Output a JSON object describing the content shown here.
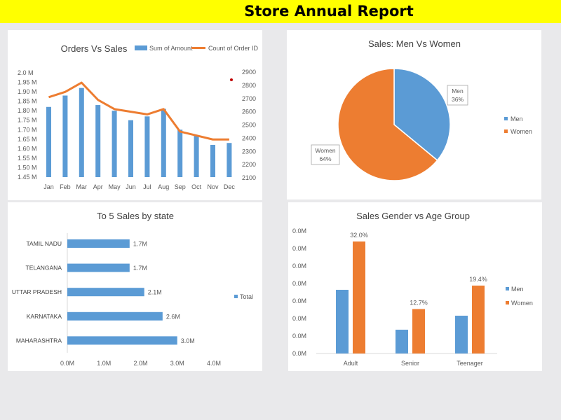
{
  "page": {
    "title": "Store Annual Report"
  },
  "colors": {
    "banner": "#ffff00",
    "blue": "#5b9bd5",
    "orange": "#ed7d31",
    "background": "#e9e9eb",
    "panel": "#ffffff"
  },
  "chart_data": [
    {
      "id": "orders-vs-sales",
      "type": "bar",
      "title": "Orders Vs Sales",
      "categories": [
        "Jan",
        "Feb",
        "Mar",
        "Apr",
        "May",
        "Jun",
        "Jul",
        "Aug",
        "Sep",
        "Oct",
        "Nov",
        "Dec"
      ],
      "series": [
        {
          "name": "Sum of Amount",
          "type": "bar",
          "axis": "left",
          "values": [
            1.82,
            1.88,
            1.92,
            1.83,
            1.8,
            1.75,
            1.77,
            1.81,
            1.7,
            1.67,
            1.62,
            1.63
          ]
        },
        {
          "name": "Count of Order ID",
          "type": "line",
          "axis": "right",
          "values": [
            2710,
            2750,
            2820,
            2690,
            2620,
            2600,
            2580,
            2620,
            2450,
            2420,
            2390,
            2390
          ]
        }
      ],
      "y_left": {
        "ticks": [
          "2.0 M",
          "1.95 M",
          "1.90 M",
          "1.85 M",
          "1.80 M",
          "1.75 M",
          "1.70 M",
          "1.65 M",
          "1.60 M",
          "1.55 M",
          "1.50 M",
          "1.45 M"
        ],
        "range": [
          1.45,
          2.0
        ],
        "unit": "M"
      },
      "y_right": {
        "ticks": [
          "2900",
          "2800",
          "2700",
          "2600",
          "2500",
          "2400",
          "2300",
          "2200",
          "2100"
        ],
        "range": [
          2100,
          2900
        ]
      },
      "legend": "top-right",
      "grid": false
    },
    {
      "id": "sales-men-vs-women",
      "type": "pie",
      "title": "Sales: Men Vs Women",
      "slices": [
        {
          "label": "Men",
          "value": 36,
          "pct_label": "36%"
        },
        {
          "label": "Women",
          "value": 64,
          "pct_label": "64%"
        }
      ],
      "legend": [
        "Men",
        "Women"
      ],
      "legend_position": "right"
    },
    {
      "id": "top-sales-by-state",
      "type": "bar",
      "orientation": "horizontal",
      "title": "To 5 Sales by state",
      "categories": [
        "TAMIL NADU",
        "TELANGANA",
        "UTTAR PRADESH",
        "KARNATAKA",
        "MAHARASHTRA"
      ],
      "values": [
        1.7,
        1.7,
        2.1,
        2.6,
        3.0
      ],
      "data_labels": [
        "1.7M",
        "1.7M",
        "2.1M",
        "2.6M",
        "3.0M"
      ],
      "x_ticks": [
        "0.0M",
        "1.0M",
        "2.0M",
        "3.0M",
        "4.0M"
      ],
      "xlim": [
        0,
        4
      ],
      "legend": [
        "Total"
      ],
      "legend_position": "right"
    },
    {
      "id": "sales-gender-vs-age",
      "type": "bar",
      "title": "Sales Gender vs Age Group",
      "categories": [
        "Adult",
        "Senior",
        "Teenager"
      ],
      "series": [
        {
          "name": "Men",
          "values": [
            18.2,
            6.8,
            10.8
          ]
        },
        {
          "name": "Women",
          "values": [
            32.0,
            12.7,
            19.4
          ],
          "data_labels": [
            "32.0%",
            "12.7%",
            "19.4%"
          ]
        }
      ],
      "y_ticks": [
        "0.0M",
        "0.0M",
        "0.0M",
        "0.0M",
        "0.0M",
        "0.0M",
        "0.0M",
        "0.0M"
      ],
      "ylim": [
        0,
        35
      ],
      "legend": "right"
    }
  ]
}
